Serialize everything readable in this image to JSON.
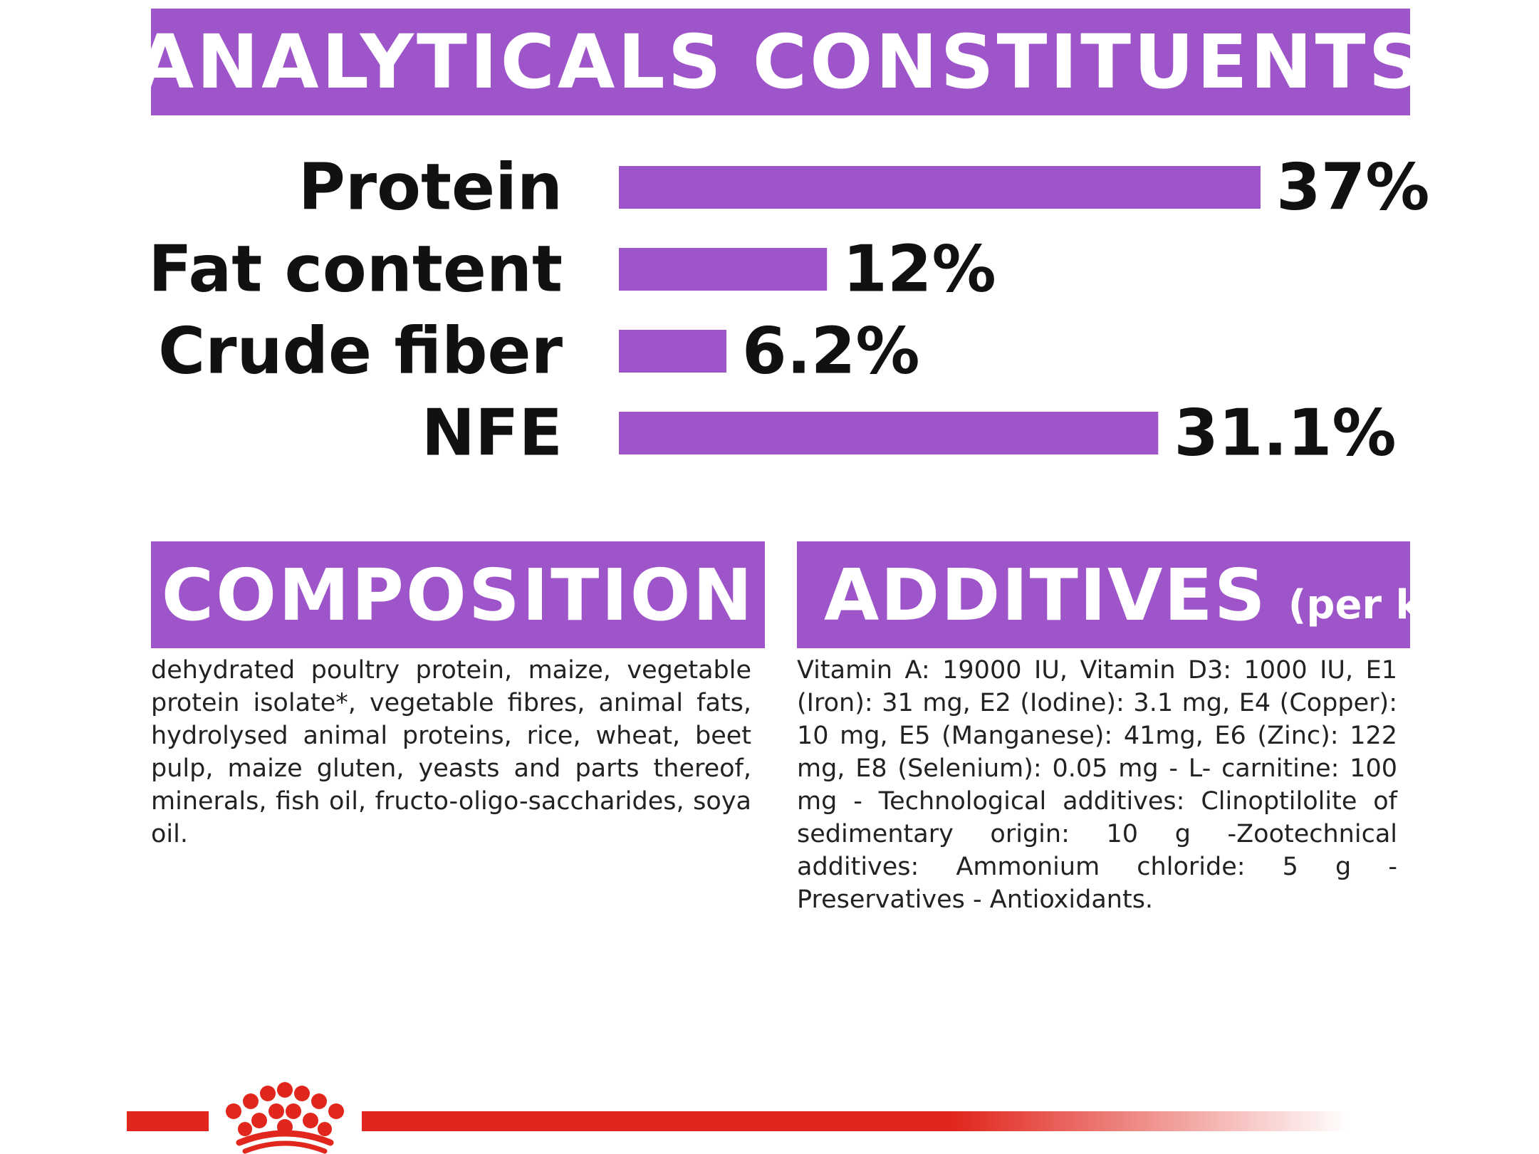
{
  "headers": {
    "analytics": "ANALYTICALS CONSTITUENTS",
    "composition": "COMPOSITION",
    "additives": "ADDITIVES",
    "additives_unit": "(per kg)"
  },
  "chart_data": {
    "type": "bar",
    "orientation": "horizontal",
    "categories": [
      "Protein",
      "Fat content",
      "Crude fiber",
      "NFE"
    ],
    "values": [
      37,
      12,
      6.2,
      31.1
    ],
    "value_labels": [
      "37%",
      "12%",
      "6.2%",
      "31.1%"
    ],
    "unit": "%",
    "xlim": [
      0,
      37
    ],
    "grid": false,
    "legend": "none",
    "bar_color": "#9d55c9"
  },
  "composition_text": "dehydrated poultry protein, maize, vegetable protein isolate*, vegetable fibres, animal fats, hydrolysed animal proteins, rice, wheat, beet pulp, maize gluten, yeasts and parts thereof, minerals, fish oil, fructo-oligo-saccharides, soya oil.",
  "additives_text": "Vitamin A: 19000 IU, Vitamin D3: 1000 IU, E1 (Iron): 31 mg, E2 (Iodine): 3.1 mg, E4 (Copper): 10 mg, E5 (Manganese): 41mg, E6 (Zinc): 122 mg, E8 (Selenium): 0.05 mg - L- carnitine: 100 mg - Technological additives: Clinoptilolite of sedimentary origin: 10 g -Zootechnical additives: Ammonium chloride: 5 g - Preservatives - Antioxidants.",
  "colors": {
    "accent": "#9d55c9",
    "brand_red": "#e0261d"
  },
  "logo": {
    "icon": "crown-icon"
  }
}
